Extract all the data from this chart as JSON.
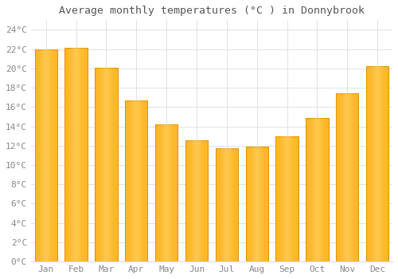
{
  "title": "Average monthly temperatures (°C ) in Donnybrook",
  "months": [
    "Jan",
    "Feb",
    "Mar",
    "Apr",
    "May",
    "Jun",
    "Jul",
    "Aug",
    "Sep",
    "Oct",
    "Nov",
    "Dec"
  ],
  "values": [
    22.0,
    22.1,
    20.1,
    16.7,
    14.2,
    12.6,
    11.7,
    11.9,
    13.0,
    14.9,
    17.4,
    20.2
  ],
  "bar_color_main": "#FDB827",
  "bar_color_edge": "#E8940A",
  "bar_color_light": "#FFD97A",
  "background_color": "#FFFFFF",
  "plot_bg_color": "#FFFFFF",
  "grid_color": "#DDDDDD",
  "ylim": [
    0,
    25
  ],
  "yticks": [
    0,
    2,
    4,
    6,
    8,
    10,
    12,
    14,
    16,
    18,
    20,
    22,
    24
  ],
  "title_fontsize": 9.5,
  "tick_fontsize": 8,
  "title_color": "#555555",
  "tick_color": "#888888"
}
